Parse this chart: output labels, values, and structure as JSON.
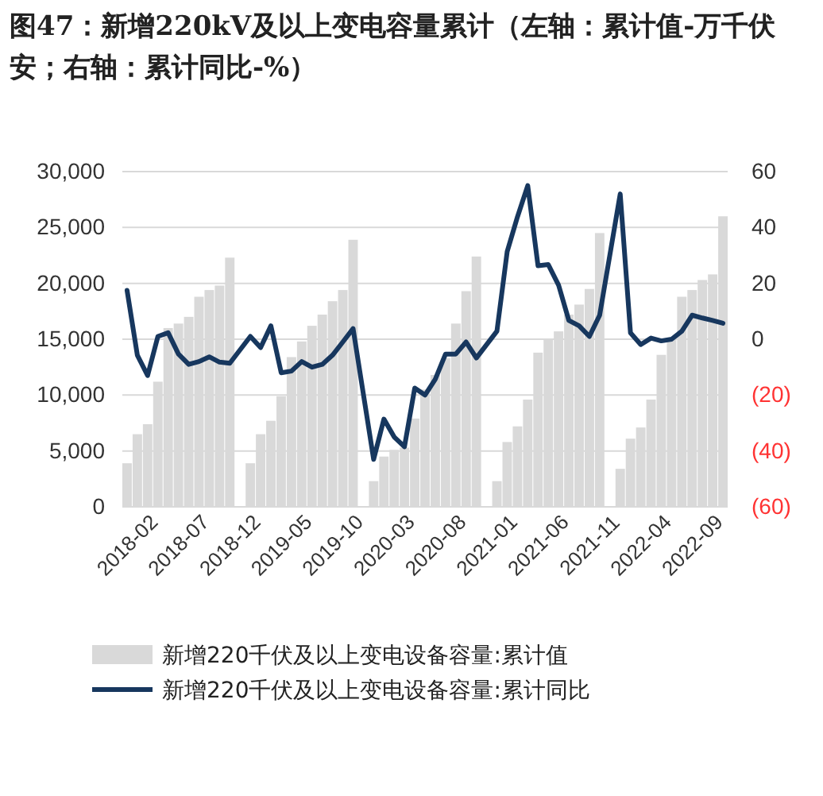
{
  "chart_data": {
    "type": "bar",
    "title": "图47：新增220kV及以上变电容量累计（左轴：累计值-万千伏安；右轴：累计同比-%）",
    "categories": [
      "2018-02",
      null,
      null,
      null,
      null,
      "2018-07",
      null,
      null,
      null,
      null,
      "2018-12",
      null,
      null,
      null,
      null,
      "2019-05",
      null,
      null,
      null,
      null,
      "2019-10",
      null,
      null,
      null,
      null,
      "2020-03",
      null,
      null,
      null,
      null,
      "2020-08",
      null,
      null,
      null,
      null,
      "2021-01",
      null,
      null,
      null,
      null,
      "2021-06",
      null,
      null,
      null,
      null,
      "2021-11",
      null,
      null,
      null,
      null,
      "2022-04",
      null,
      null,
      null,
      null,
      "2022-09",
      null,
      null,
      null
    ],
    "series": [
      {
        "name": "新增220千伏及以上变电设备容量:累计值",
        "color": "#d9d9d9",
        "values": [
          3900,
          6500,
          7400,
          11200,
          16000,
          16400,
          17000,
          18800,
          19400,
          19800,
          22300,
          null,
          3900,
          6500,
          7700,
          9900,
          13400,
          14800,
          16200,
          17200,
          18400,
          19400,
          23900,
          null,
          2300,
          4500,
          5100,
          5300,
          7900,
          10500,
          11800,
          13300,
          16400,
          19300,
          22400,
          null,
          2300,
          5800,
          7200,
          9600,
          13800,
          15000,
          15700,
          17200,
          18100,
          19500,
          24500,
          null,
          3400,
          6100,
          7100,
          9600,
          13600,
          15000,
          18800,
          19400,
          20300,
          20800,
          26000
        ]
      },
      {
        "name": "新增220千伏及以上变电设备容量:累计同比",
        "type": "line",
        "axis": "y2",
        "color": "#17375e",
        "values": [
          17.5,
          -5.7,
          -13,
          1,
          2.3,
          -5.3,
          -9,
          -8,
          -6.3,
          -8.2,
          -8.6,
          null,
          1,
          -3,
          4.8,
          -12,
          -11.4,
          -8,
          -10,
          -9,
          -5.7,
          -1,
          3.8,
          null,
          -43,
          -28.6,
          -35,
          -38.5,
          -17.5,
          -20,
          -14.3,
          -5.3,
          -5.3,
          -1,
          -6.7,
          null,
          2.9,
          31.4,
          43.8,
          55,
          26.3,
          26.7,
          19.4,
          6.7,
          4.8,
          1,
          8.6,
          null,
          52,
          2.3,
          -1.9,
          0.4,
          -0.6,
          0,
          2.9,
          8.6,
          7.6,
          6.7,
          5.7
        ]
      }
    ],
    "ylim": [
      0,
      30000
    ],
    "yticks": [
      {
        "value": 0,
        "label": "0"
      },
      {
        "value": 5000,
        "label": "5,000"
      },
      {
        "value": 10000,
        "label": "10,000"
      },
      {
        "value": 15000,
        "label": "15,000"
      },
      {
        "value": 20000,
        "label": "20,000"
      },
      {
        "value": 25000,
        "label": "25,000"
      },
      {
        "value": 30000,
        "label": "30,000"
      }
    ],
    "y2lim": [
      -60,
      60
    ],
    "y2ticks": [
      {
        "value": -60,
        "label": "(60)"
      },
      {
        "value": -40,
        "label": "(40)"
      },
      {
        "value": -20,
        "label": "(20)"
      },
      0,
      20,
      40,
      60
    ],
    "grid": "y",
    "legend": "bottom"
  }
}
